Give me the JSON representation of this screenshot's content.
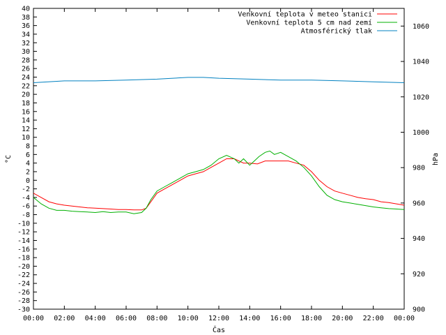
{
  "chart_data": {
    "type": "line",
    "xlabel": "Čas",
    "ylabel_left": "°C",
    "ylabel_right": "hPa",
    "x_ticks": [
      "00:00",
      "02:00",
      "04:00",
      "06:00",
      "08:00",
      "10:00",
      "12:00",
      "14:00",
      "16:00",
      "18:00",
      "20:00",
      "22:00",
      "00:00"
    ],
    "x_range_hours": [
      0,
      24
    ],
    "ylim_left": [
      -30,
      40
    ],
    "y_left_step": 2,
    "ylim_right": [
      900,
      1070
    ],
    "y_right_ticks": [
      900,
      920,
      940,
      960,
      980,
      1000,
      1020,
      1040,
      1060
    ],
    "legend_position": "top-right",
    "grid": false,
    "series": [
      {
        "name": "Venkovní teplota v meteo stanici",
        "axis": "left",
        "color": "#ff0000",
        "x": [
          0,
          0.5,
          1,
          1.5,
          2,
          2.5,
          3,
          3.5,
          4,
          4.5,
          5,
          5.5,
          6,
          6.5,
          7,
          7.3,
          7.6,
          8,
          8.5,
          9,
          9.5,
          10,
          10.5,
          11,
          11.5,
          12,
          12.5,
          13,
          13.3,
          13.6,
          14,
          14.5,
          15,
          15.5,
          16,
          16.5,
          17,
          17.5,
          18,
          18.5,
          19,
          19.5,
          20,
          20.5,
          21,
          21.5,
          22,
          22.5,
          23,
          23.5,
          24
        ],
        "values": [
          -3,
          -4,
          -5,
          -5.5,
          -5.8,
          -6,
          -6.2,
          -6.4,
          -6.5,
          -6.6,
          -6.7,
          -6.8,
          -6.8,
          -6.9,
          -6.9,
          -6.5,
          -5,
          -3,
          -2,
          -1,
          0,
          1,
          1.5,
          2,
          3,
          4,
          5,
          5,
          4.5,
          4,
          4,
          3.8,
          4.5,
          4.5,
          4.5,
          4.5,
          4,
          3.5,
          2,
          0,
          -1.5,
          -2.5,
          -3,
          -3.5,
          -4,
          -4.3,
          -4.5,
          -5,
          -5.2,
          -5.5,
          -5.8
        ]
      },
      {
        "name": "Venkovní teplota 5 cm nad zemí",
        "axis": "left",
        "color": "#00b000",
        "x": [
          0,
          0.5,
          1,
          1.5,
          2,
          2.5,
          3,
          3.5,
          4,
          4.5,
          5,
          5.5,
          6,
          6.5,
          7,
          7.3,
          7.6,
          8,
          8.5,
          9,
          9.5,
          10,
          10.5,
          11,
          11.5,
          12,
          12.5,
          13,
          13.3,
          13.6,
          14,
          14.3,
          14.6,
          15,
          15.3,
          15.6,
          16,
          16.5,
          17,
          17.5,
          18,
          18.5,
          19,
          19.5,
          20,
          20.5,
          21,
          21.5,
          22,
          22.5,
          23,
          23.5,
          24
        ],
        "values": [
          -4,
          -5.5,
          -6.5,
          -7,
          -7,
          -7.2,
          -7.3,
          -7.4,
          -7.5,
          -7.3,
          -7.5,
          -7.4,
          -7.4,
          -7.8,
          -7.5,
          -6.5,
          -4.5,
          -2.5,
          -1.5,
          -0.5,
          0.5,
          1.5,
          2,
          2.5,
          3.5,
          5,
          5.8,
          5,
          4,
          5,
          3.5,
          4.5,
          5.5,
          6.5,
          6.8,
          6,
          6.5,
          5.5,
          4.5,
          3,
          1,
          -1.5,
          -3.5,
          -4.5,
          -5,
          -5.3,
          -5.6,
          -5.9,
          -6.2,
          -6.4,
          -6.6,
          -6.7,
          -6.8
        ]
      },
      {
        "name": "Atmosférický tlak",
        "axis": "right",
        "color": "#0080c0",
        "x": [
          0,
          2,
          4,
          6,
          8,
          10,
          11,
          12,
          14,
          16,
          18,
          20,
          22,
          24
        ],
        "values": [
          1028,
          1029,
          1029,
          1029.5,
          1030,
          1031,
          1031,
          1030.5,
          1030,
          1029.5,
          1029.5,
          1029,
          1028.5,
          1028
        ]
      }
    ]
  }
}
